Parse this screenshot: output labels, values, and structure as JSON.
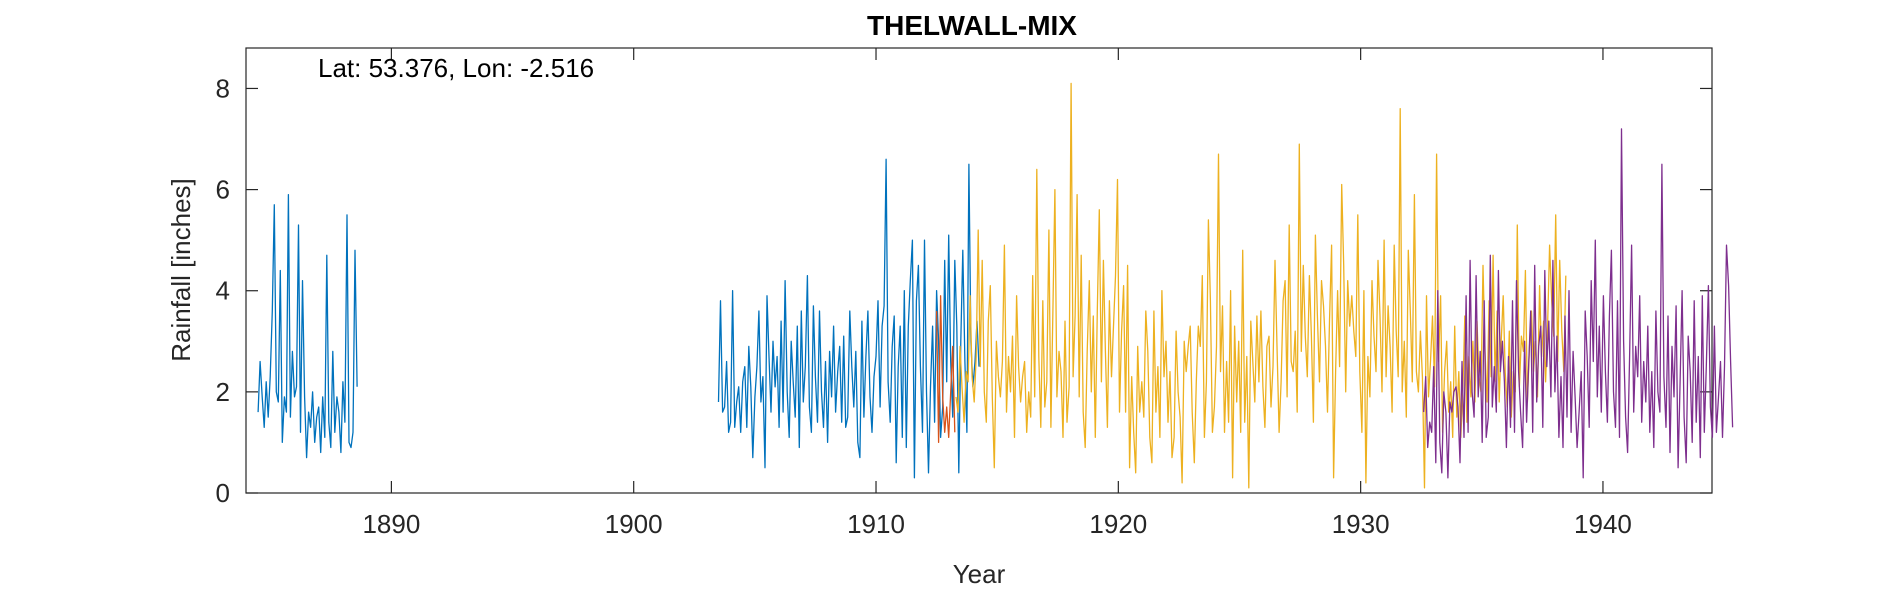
{
  "chart_data": {
    "type": "line",
    "title": "THELWALL-MIX",
    "xlabel": "Year",
    "ylabel": "Rainfall [inches]",
    "annotation": "Lat: 53.376, Lon: -2.516",
    "xlim": [
      1884.0,
      1944.5
    ],
    "ylim": [
      0,
      8.8
    ],
    "xticks": [
      1890,
      1900,
      1910,
      1920,
      1930,
      1940
    ],
    "yticks": [
      0,
      2,
      4,
      6,
      8
    ],
    "grid": false,
    "legend": "none",
    "series": [
      {
        "color": "#0072BD",
        "segments": [
          {
            "x_start": 1884.5,
            "values": [
              1.6,
              2.6,
              1.9,
              1.3,
              2.2,
              1.5,
              2.3,
              3.6,
              5.7,
              2.0,
              1.8,
              4.4,
              1.0,
              1.9,
              1.6,
              5.9,
              1.5,
              2.8,
              1.9,
              2.1,
              5.3,
              1.2,
              4.2,
              1.9,
              0.7,
              1.6,
              1.3,
              2.0,
              1.0,
              1.5,
              1.7,
              0.8,
              1.9,
              1.1,
              4.7,
              1.4,
              0.9,
              2.8,
              1.2,
              1.9,
              1.6,
              0.8,
              2.2,
              1.4,
              5.5,
              1.0,
              0.9,
              1.2,
              4.8,
              2.1
            ]
          },
          {
            "x_start": 1903.5,
            "values": [
              1.8,
              3.8,
              1.6,
              1.7,
              2.6,
              1.2,
              1.4,
              4.0,
              1.3,
              1.8,
              2.1,
              1.2,
              2.2,
              2.5,
              1.3,
              2.9,
              2.1,
              0.7,
              1.9,
              2.5,
              3.6,
              1.8,
              2.3,
              0.5,
              3.9,
              2.7,
              1.6,
              3.0,
              2.1,
              2.7,
              1.3,
              3.4,
              1.6,
              4.2,
              2.0,
              1.1,
              3.0,
              2.2,
              1.5,
              3.3,
              0.9,
              3.6,
              1.8,
              2.5,
              4.3,
              1.7,
              1.2,
              3.7,
              2.3,
              1.4,
              3.6,
              2.0,
              1.3,
              2.6,
              1.0,
              2.8,
              1.9,
              3.3,
              1.6,
              2.4,
              2.9,
              1.4,
              3.1,
              1.3,
              1.5,
              3.6,
              2.5,
              1.7,
              2.8,
              1.0,
              0.7,
              3.4,
              1.5,
              2.7,
              3.6,
              1.9,
              1.2,
              2.3,
              2.7,
              3.8,
              1.7,
              3.3,
              3.7,
              6.6,
              2.2,
              1.4,
              2.9,
              3.5,
              0.6,
              2.5,
              3.3,
              1.1,
              4.0,
              0.9,
              3.3,
              4.2,
              5.0,
              0.3,
              3.8,
              4.5,
              2.5,
              1.2,
              5.0,
              2.0,
              0.4,
              2.1,
              3.3,
              1.4,
              4.0,
              3.0,
              1.1,
              1.7,
              4.6,
              2.2,
              5.1,
              2.6,
              1.5,
              4.6,
              3.3,
              0.4,
              3.0,
              4.8,
              2.6,
              1.2,
              6.5,
              3.0,
              2.1,
              2.6,
              3.4,
              2.5
            ]
          }
        ]
      },
      {
        "color": "#D95319",
        "segments": [
          {
            "x_start": 1912.5,
            "values": [
              3.6,
              1.0,
              3.9,
              1.9,
              1.2,
              1.7,
              1.1,
              2.0,
              2.9,
              1.2
            ]
          }
        ]
      },
      {
        "color": "#EDB120",
        "segments": [
          {
            "x_start": 1913.3,
            "values": [
              1.9,
              1.6,
              2.9,
              2.1,
              1.4,
              2.4,
              2.2,
              3.9,
              2.3,
              1.8,
              2.7,
              5.2,
              2.5,
              4.6,
              2.0,
              1.4,
              3.4,
              4.1,
              1.9,
              0.5,
              3.0,
              2.3,
              1.9,
              2.6,
              4.9,
              1.6,
              2.7,
              2.0,
              3.1,
              1.1,
              3.9,
              2.5,
              1.8,
              2.3,
              2.6,
              1.2,
              2.0,
              1.5,
              4.3,
              1.9,
              6.4,
              2.7,
              1.3,
              3.8,
              1.7,
              2.2,
              5.2,
              1.3,
              3.6,
              6.0,
              1.9,
              2.8,
              2.4,
              1.1,
              3.4,
              1.4,
              2.1,
              8.1,
              2.3,
              3.5,
              5.9,
              1.9,
              4.7,
              1.6,
              0.9,
              2.8,
              4.2,
              2.0,
              3.5,
              1.1,
              3.6,
              5.6,
              2.2,
              4.6,
              2.8,
              1.3,
              3.8,
              2.3,
              3.3,
              4.3,
              6.2,
              1.6,
              3.2,
              4.1,
              1.6,
              4.5,
              0.5,
              2.3,
              1.2,
              0.4,
              2.9,
              1.6,
              2.2,
              1.5,
              3.6,
              2.8,
              1.1,
              0.6,
              3.6,
              1.6,
              2.5,
              1.1,
              4.0,
              2.3,
              3.0,
              1.4,
              2.4,
              0.7,
              1.1,
              3.2,
              2.0,
              1.5,
              0.2,
              3.0,
              2.4,
              2.9,
              3.3,
              1.6,
              0.6,
              2.2,
              3.3,
              2.9,
              4.3,
              1.1,
              2.2,
              5.4,
              3.8,
              1.2,
              1.7,
              2.9,
              6.7,
              2.4,
              3.7,
              1.2,
              2.6,
              1.4,
              4.0,
              0.3,
              3.3,
              1.8,
              3.0,
              1.2,
              4.8,
              1.4,
              2.7,
              0.1,
              3.4,
              2.6,
              1.8,
              3.5,
              2.2,
              3.6,
              2.1,
              1.3,
              2.9,
              3.1,
              1.7,
              2.5,
              4.6,
              2.9,
              1.2,
              2.2,
              3.8,
              4.2,
              1.9,
              5.3,
              2.6,
              2.4,
              3.2,
              1.6,
              6.9,
              2.8,
              4.5,
              3.1,
              2.3,
              4.3,
              3.1,
              1.4,
              5.1,
              3.5,
              2.2,
              4.2,
              3.7,
              2.9,
              1.6,
              3.4,
              4.9,
              0.3,
              2.4,
              4.0,
              2.5,
              6.1,
              4.5,
              2.0,
              4.2,
              3.3,
              3.9,
              3.2,
              2.7,
              5.5,
              2.4,
              1.2,
              4.0,
              0.2,
              2.7,
              1.9,
              4.2,
              3.1,
              2.4,
              4.6,
              3.5,
              2.0,
              5.0,
              2.3,
              3.7,
              2.9,
              1.6,
              4.9,
              3.2,
              2.3,
              7.6,
              2.0,
              3.0,
              1.5,
              4.8,
              3.6,
              2.2,
              5.9,
              2.4,
              2.0,
              3.2,
              2.3,
              0.1,
              3.9,
              1.9,
              2.6,
              3.5,
              2.1,
              6.7,
              2.6,
              3.9,
              1.2,
              2.4,
              3.0,
              1.6,
              2.2,
              1.1,
              3.3,
              1.5,
              2.4,
              1.1,
              2.0,
              3.5,
              1.4,
              2.7,
              1.9,
              3.0,
              1.8,
              3.4,
              2.3,
              2.0,
              4.5,
              2.8,
              1.8,
              3.8,
              2.3,
              4.7,
              2.2,
              3.6,
              1.8,
              3.0,
              3.9,
              2.4,
              1.7,
              3.2,
              1.5,
              2.4,
              2.0,
              5.3,
              2.1,
              3.1,
              2.8,
              4.4,
              1.8,
              2.9,
              3.6,
              2.4,
              3.0,
              1.9,
              4.1,
              2.7,
              3.4,
              2.2,
              3.3,
              4.9,
              3.8,
              3.1,
              5.5,
              2.6,
              4.6,
              3.2,
              2.4,
              4.3
            ]
          }
        ]
      },
      {
        "color": "#7E2F8E",
        "segments": [
          {
            "x_start": 1932.6,
            "values": [
              1.6,
              2.3,
              0.9,
              1.4,
              1.2,
              2.5,
              0.6,
              4.0,
              1.0,
              0.4,
              2.0,
              1.6,
              0.3,
              1.8,
              1.6,
              2.0,
              2.1,
              1.7,
              0.6,
              2.6,
              1.1,
              3.9,
              1.2,
              4.6,
              2.0,
              1.5,
              4.3,
              1.9,
              2.8,
              1.0,
              3.8,
              1.1,
              1.5,
              4.7,
              1.7,
              2.5,
              1.6,
              4.4,
              2.4,
              3.0,
              2.2,
              0.9,
              2.7,
              1.3,
              3.8,
              1.2,
              4.2,
              2.4,
              1.6,
              0.9,
              3.0,
              1.4,
              2.5,
              3.6,
              1.2,
              4.5,
              1.8,
              2.9,
              3.3,
              1.3,
              4.4,
              2.5,
              3.4,
              1.9,
              4.6,
              2.0,
              3.1,
              1.1,
              2.3,
              0.9,
              3.5,
              1.5,
              4.0,
              1.2,
              2.8,
              1.9,
              0.9,
              1.6,
              2.4,
              0.3,
              3.6,
              2.7,
              1.3,
              4.2,
              2.6,
              5.0,
              1.9,
              3.3,
              1.6,
              3.9,
              2.4,
              1.4,
              3.5,
              4.8,
              2.0,
              1.3,
              3.8,
              1.1,
              7.2,
              3.0,
              1.5,
              0.8,
              2.7,
              4.9,
              1.6,
              2.9,
              2.3,
              3.9,
              1.4,
              2.6,
              1.8,
              3.3,
              1.2,
              2.4,
              0.9,
              3.6,
              2.0,
              1.6,
              6.5,
              2.3,
              1.3,
              3.5,
              0.8,
              2.9,
              1.9,
              3.7,
              0.5,
              2.2,
              4.0,
              1.5,
              0.6,
              3.1,
              2.4,
              1.0,
              3.8,
              1.4,
              2.7,
              0.7,
              3.9,
              1.2,
              2.5,
              4.1,
              1.7,
              1.1,
              3.3,
              1.2,
              1.9,
              2.6,
              1.1,
              2.5,
              4.9,
              4.1,
              2.6,
              1.3
            ]
          }
        ]
      }
    ]
  }
}
